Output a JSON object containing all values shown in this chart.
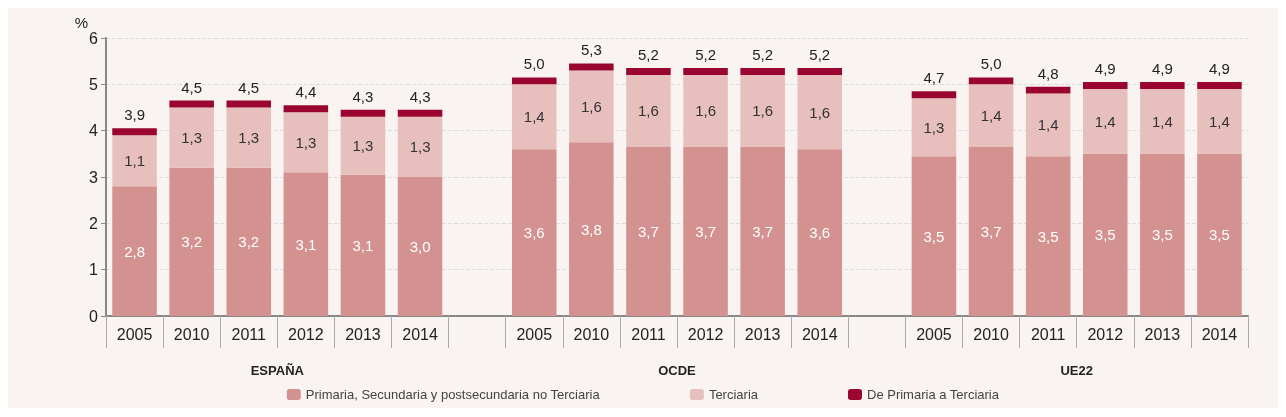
{
  "chart_data": {
    "type": "bar",
    "stacked": true,
    "ylabel": "%",
    "categories": [
      "2005",
      "2010",
      "2011",
      "2012",
      "2013",
      "2014",
      null,
      "2005",
      "2010",
      "2011",
      "2012",
      "2013",
      "2014",
      null,
      "2005",
      "2010",
      "2011",
      "2012",
      "2013",
      "2014"
    ],
    "series": [
      {
        "name": "Primaria, Secundaria y postsecundaria no Terciaria",
        "color": "#d39190",
        "values": [
          2.8,
          3.2,
          3.2,
          3.1,
          3.05,
          3.0,
          null,
          3.6,
          3.75,
          3.65,
          3.65,
          3.65,
          3.6,
          null,
          3.45,
          3.65,
          3.45,
          3.5,
          3.5,
          3.5
        ],
        "value_labels": [
          "2,8",
          "3,2",
          "3,2",
          "3,1",
          "3,1",
          "3,0",
          null,
          "3,6",
          "3,8",
          "3,7",
          "3,7",
          "3,7",
          "3,6",
          null,
          "3,5",
          "3,7",
          "3,5",
          "3,5",
          "3,5",
          "3,5"
        ]
      },
      {
        "name": "Terciaria",
        "color": "#e7c0bd",
        "values": [
          1.1,
          1.3,
          1.3,
          1.3,
          1.25,
          1.3,
          null,
          1.4,
          1.55,
          1.55,
          1.55,
          1.55,
          1.6,
          null,
          1.25,
          1.35,
          1.35,
          1.4,
          1.4,
          1.4
        ],
        "value_labels": [
          "1,1",
          "1,3",
          "1,3",
          "1,3",
          "1,3",
          "1,3",
          null,
          "1,4",
          "1,6",
          "1,6",
          "1,6",
          "1,6",
          "1,6",
          null,
          "1,3",
          "1,4",
          "1,4",
          "1,4",
          "1,4",
          "1,4"
        ]
      },
      {
        "name": "De Primaria a Terciaria",
        "color": "#9b0630",
        "values": [
          0.15,
          0.15,
          0.15,
          0.15,
          0.15,
          0.15,
          null,
          0.15,
          0.15,
          0.15,
          0.15,
          0.15,
          0.15,
          null,
          0.15,
          0.15,
          0.15,
          0.15,
          0.15,
          0.15
        ]
      }
    ],
    "totals": [
      "3,9",
      "4,5",
      "4,5",
      "4,4",
      "4,3",
      "4,3",
      null,
      "5,0",
      "5,3",
      "5,2",
      "5,2",
      "5,2",
      "5,2",
      null,
      "4,7",
      "5,0",
      "4,8",
      "4,9",
      "4,9",
      "4,9"
    ],
    "annotations": [
      "ESPAÑA",
      "OCDE",
      "UE22"
    ],
    "ylim": [
      0,
      6
    ],
    "yticks": [
      0,
      1,
      2,
      3,
      4,
      5,
      6
    ],
    "grid": "y",
    "legend": "bottom"
  }
}
